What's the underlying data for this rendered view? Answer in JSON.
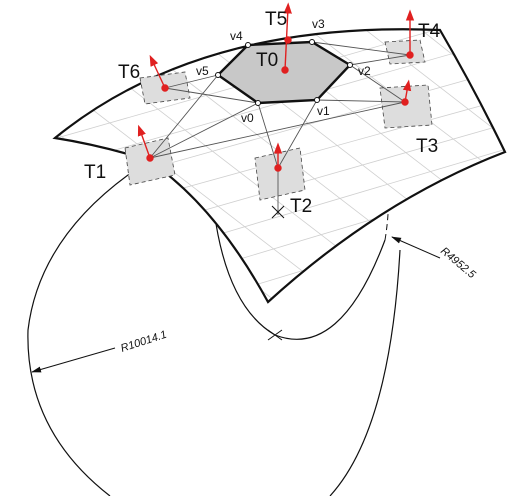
{
  "tangent_planes": [
    "T0",
    "T1",
    "T2",
    "T3",
    "T4",
    "T5",
    "T6"
  ],
  "vertices": [
    "v0",
    "v1",
    "v2",
    "v3",
    "v4",
    "v5"
  ],
  "dimensions": [
    "R10014.1",
    "R4952.5"
  ]
}
